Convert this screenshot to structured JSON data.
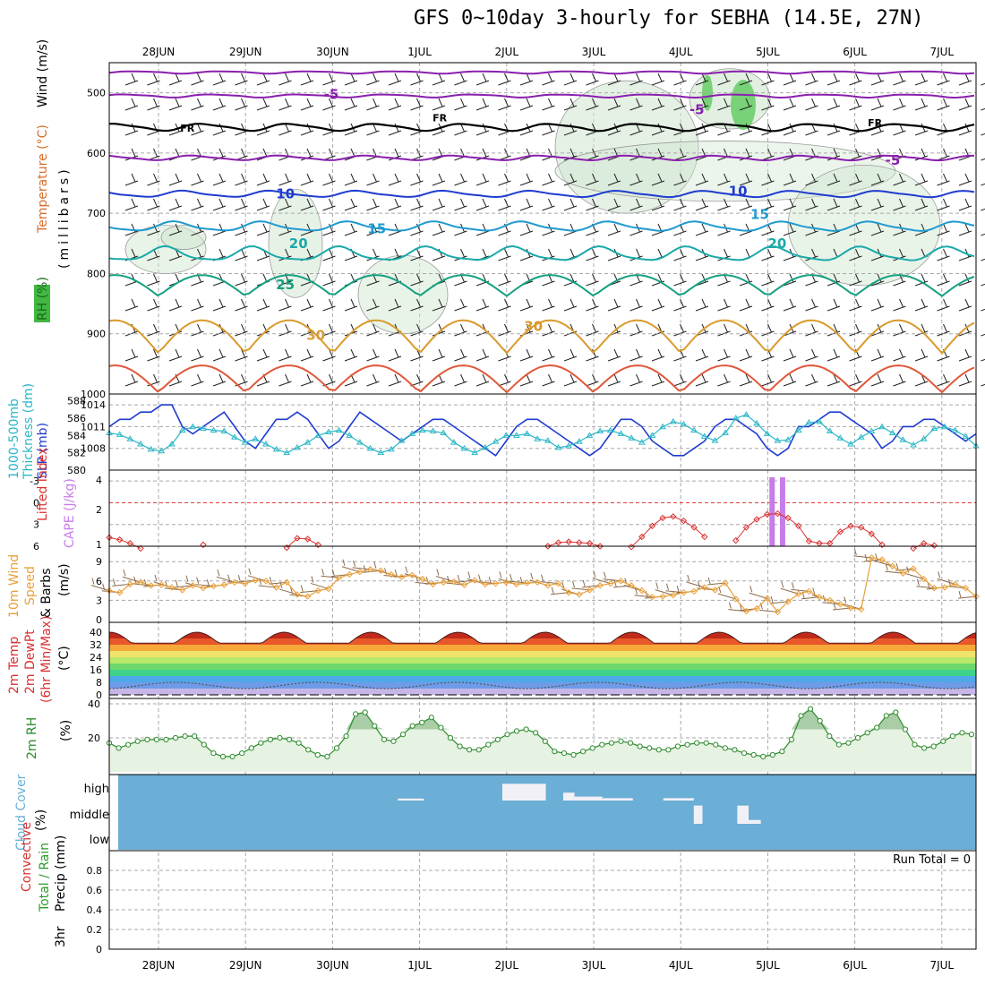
{
  "title": "GFS 0~10day 3-hourly for SEBHA (14.5E, 27N)",
  "dates": [
    "28JUN",
    "29JUN",
    "30JUN",
    "1JUL",
    "2JUL",
    "3JUL",
    "4JUL",
    "5JUL",
    "6JUL",
    "7JUL"
  ],
  "run_total": "Run Total = 0",
  "colors": {
    "wind_label": "#000000",
    "temp_label": "#d86d2b",
    "rh_label": "#2e9c2e",
    "slp": "#1f3ccf",
    "thickness": "#2bb7c7",
    "lifted": "#d93030",
    "cape": "#c77ce8",
    "wind10": "#e8a03a",
    "barbs10": "#8a6a4a",
    "rh2m": "#2e8b2e",
    "cloud_bg": "#6baed6",
    "cloud_fg": "#f2f0f7",
    "precip_total": "#2e9c2e",
    "precip_conv": "#d93030"
  },
  "panels": {
    "upper": {
      "ylabels": [
        "Wind (m/s)",
        "Temperature (°C)",
        "RH (%)",
        "(millibars)"
      ],
      "yticks": [
        "500",
        "600",
        "700",
        "800",
        "900",
        "1000"
      ],
      "contour_labels": [
        {
          "text": "-5",
          "x": 1.9,
          "p": 503,
          "color": "#8a1fae"
        },
        {
          "text": "-5",
          "x": 6.1,
          "p": 528,
          "color": "#8a1fae"
        },
        {
          "text": "-5",
          "x": 8.35,
          "p": 612,
          "color": "#8a1fae"
        },
        {
          "text": "FR",
          "x": 0.25,
          "p": 557,
          "color": "#000000"
        },
        {
          "text": "FR",
          "x": 3.15,
          "p": 540,
          "color": "#000000"
        },
        {
          "text": "FR",
          "x": 8.15,
          "p": 548,
          "color": "#000000"
        },
        {
          "text": "10",
          "x": 1.35,
          "p": 668,
          "color": "#1f3ccf"
        },
        {
          "text": "10",
          "x": 6.55,
          "p": 663,
          "color": "#1f3ccf"
        },
        {
          "text": "15",
          "x": 2.4,
          "p": 726,
          "color": "#1f9ad0"
        },
        {
          "text": "15",
          "x": 6.8,
          "p": 702,
          "color": "#1f9ad0"
        },
        {
          "text": "20",
          "x": 1.5,
          "p": 750,
          "color": "#1aa9a9"
        },
        {
          "text": "20",
          "x": 7.0,
          "p": 750,
          "color": "#1aa9a9"
        },
        {
          "text": "25",
          "x": 1.35,
          "p": 819,
          "color": "#14a080"
        },
        {
          "text": "30",
          "x": 1.7,
          "p": 903,
          "color": "#d99a2b"
        },
        {
          "text": "30",
          "x": 4.2,
          "p": 888,
          "color": "#d99a2b"
        }
      ],
      "isotherms": [
        {
          "name": "-10",
          "color": "#8a1fae",
          "base": 466,
          "amp": 3
        },
        {
          "name": "-5 upper",
          "color": "#8a1fae",
          "base": 505,
          "amp": 4
        },
        {
          "name": "FR",
          "color": "#000000",
          "base": 557,
          "amp": 9
        },
        {
          "name": "-5",
          "color": "#8a1fae",
          "base": 608,
          "amp": 6
        },
        {
          "name": "10",
          "color": "#1f3ccf",
          "base": 668,
          "amp": 8
        },
        {
          "name": "15",
          "color": "#1f9ad0",
          "base": 722,
          "amp": 12
        },
        {
          "name": "20",
          "color": "#1aa9a9",
          "base": 768,
          "amp": 18
        },
        {
          "name": "25",
          "color": "#14a080",
          "base": 820,
          "amp": 35
        },
        {
          "name": "30",
          "color": "#d99a2b",
          "base": 905,
          "amp": 55
        },
        {
          "name": "35",
          "color": "#e0583a",
          "base": 975,
          "amp": 45
        }
      ]
    },
    "slp": {
      "ylabels": [
        "1000-500mb",
        "Thickness (dm)",
        "SLP (mb)"
      ],
      "left_ticks": [
        "588",
        "586",
        "584",
        "582",
        "580"
      ],
      "right_ticks": [
        "1014",
        "1011",
        "1008"
      ],
      "slp_values": [
        1011,
        1012,
        1012,
        1013,
        1013,
        1014,
        1014,
        1011,
        1010,
        1011,
        1012,
        1013,
        1011,
        1009,
        1008,
        1010,
        1012,
        1012,
        1013,
        1012,
        1010,
        1008,
        1009,
        1011,
        1013,
        1012,
        1011,
        1010,
        1009,
        1010,
        1011,
        1012,
        1012,
        1011,
        1010,
        1009,
        1008,
        1007,
        1009,
        1011,
        1012,
        1012,
        1011,
        1010,
        1009,
        1008,
        1007,
        1008,
        1010,
        1012,
        1012,
        1011,
        1009,
        1008,
        1007,
        1007,
        1008,
        1009,
        1011,
        1012,
        1012,
        1011,
        1010,
        1008,
        1007,
        1008,
        1011,
        1011,
        1012,
        1013,
        1013,
        1012,
        1011,
        1010,
        1008,
        1009,
        1011,
        1011,
        1012,
        1012,
        1011,
        1010,
        1009,
        1010
      ],
      "thick_values": [
        584.3,
        584.1,
        583.6,
        583,
        582.4,
        582.2,
        583,
        584.6,
        585,
        584.8,
        584.6,
        584.5,
        583.8,
        583.2,
        583.6,
        583,
        582.4,
        582,
        582.6,
        583.2,
        584,
        584.4,
        584.6,
        584,
        583.2,
        582.5,
        582,
        582.4,
        583.4,
        584.2,
        584.6,
        584.5,
        584.3,
        583.2,
        582.5,
        582,
        582.6,
        583.3,
        584,
        584,
        584.2,
        583.6,
        583.4,
        582.6,
        582.8,
        583.3,
        584,
        584.5,
        584.6,
        584.2,
        583.7,
        583.2,
        584,
        585,
        585.6,
        585.3,
        584.6,
        583.9,
        583.4,
        584.3,
        586,
        586.4,
        585.4,
        584.2,
        583.4,
        583.5,
        584.6,
        585.5,
        585.6,
        584.5,
        583.7,
        583,
        583.8,
        584.5,
        585,
        584.3,
        583.5,
        582.9,
        583.6,
        584.8,
        585,
        584.6,
        583.9,
        582.8
      ]
    },
    "cape": {
      "ylabels": [
        "Lifted Index",
        "CAPE (J/kg)"
      ],
      "left_ticks": [
        "-3",
        "0",
        "3",
        "6"
      ],
      "right_ticks": [
        "4",
        "2",
        "1"
      ],
      "li_values": [
        4.8,
        5.1,
        5.6,
        6.3,
        7,
        7,
        7,
        7,
        6.6,
        5.8,
        6.5,
        7,
        6.8,
        6.9,
        7,
        7,
        7,
        6.2,
        4.9,
        5,
        5.8,
        6.7,
        7,
        7,
        7,
        7,
        7,
        7,
        7,
        7,
        7,
        7,
        7,
        7,
        7,
        7,
        7,
        7,
        7,
        7,
        7,
        7,
        6,
        5.5,
        5.4,
        5.5,
        5.6,
        6,
        7,
        6.8,
        6.1,
        4.7,
        3.2,
        2.1,
        1.9,
        2.5,
        3.4,
        4.7,
        7,
        7,
        5.2,
        3.4,
        2.3,
        1.6,
        1.5,
        2.1,
        3.2,
        5.3,
        5.6,
        5.6,
        4,
        3.2,
        3.4,
        4.3,
        5.8,
        7,
        7,
        6.3,
        5.6,
        5.9,
        6.7,
        7,
        7,
        7
      ],
      "cape_bars": [
        {
          "x": 7.05,
          "value": 4.0
        },
        {
          "x": 7.17,
          "value": 4.0
        }
      ]
    },
    "wind10": {
      "ylabels": [
        "10m Wind",
        "Speed",
        "& Barbs",
        "(m/s)"
      ],
      "yticks": [
        "9",
        "6",
        "3",
        "0"
      ],
      "speed_values": [
        4.5,
        4.2,
        5.5,
        5.8,
        5.3,
        5.4,
        5,
        4.6,
        5.3,
        4.9,
        5.2,
        5.4,
        5.8,
        5.6,
        6.1,
        6,
        5,
        5.8,
        3.9,
        3.6,
        4.5,
        4.8,
        6.5,
        7,
        7.4,
        7.8,
        7.6,
        7,
        6.6,
        6.9,
        6.3,
        5.5,
        5.8,
        5.9,
        5.4,
        6.1,
        5.5,
        5.6,
        5.8,
        5.5,
        5.7,
        5.8,
        5.3,
        5.6,
        4.2,
        3.9,
        4.6,
        5.3,
        5.6,
        6,
        5.3,
        4.5,
        3.5,
        3.6,
        3.8,
        4.2,
        4.4,
        5,
        4.6,
        5.7,
        3.2,
        1.3,
        1.7,
        3.3,
        1.2,
        2.8,
        4,
        4.4,
        3.5,
        3,
        2.4,
        1.8,
        1.6,
        9.6,
        9.3,
        8.3,
        7.2,
        7.9,
        6.3,
        4.9,
        5,
        5.5,
        4.9,
        3.6
      ]
    },
    "temp2m": {
      "ylabels": [
        "2m Temp",
        "2m DewPt",
        "(6hr Min/Max)",
        "(°C)"
      ],
      "yticks": [
        "40",
        "32",
        "24",
        "16",
        "8",
        "0"
      ],
      "max_values": [
        38,
        40,
        40,
        41,
        40,
        41,
        39,
        40,
        39,
        41,
        40
      ],
      "min_values": [
        28,
        27,
        28,
        28,
        27,
        28,
        27,
        28,
        27,
        28,
        28
      ]
    },
    "rh2m": {
      "ylabels": [
        "2m RH",
        "(%)"
      ],
      "yticks": [
        "40",
        "20"
      ],
      "values": [
        17,
        14,
        16,
        18,
        19,
        19,
        19,
        20,
        21,
        21,
        16,
        11,
        9,
        9,
        11,
        14,
        17,
        19,
        20,
        19,
        17,
        13,
        10,
        9,
        14,
        21,
        34,
        35,
        27,
        19,
        18,
        22,
        27,
        29,
        32,
        26,
        20,
        15,
        13,
        13,
        16,
        19,
        22,
        24,
        25,
        23,
        18,
        12,
        11,
        10,
        12,
        14,
        16,
        17,
        18,
        17,
        15,
        14,
        13,
        13,
        15,
        16,
        17,
        17,
        16,
        14,
        13,
        11,
        10,
        9,
        10,
        12,
        19,
        33,
        37,
        30,
        21,
        16,
        17,
        20,
        23,
        26,
        33,
        35,
        25,
        16,
        14,
        15,
        18,
        21,
        23,
        22
      ]
    },
    "cloud": {
      "ylabels": [
        "Cloud Cover",
        "(%)"
      ],
      "levels": [
        "high",
        "middle",
        "low"
      ],
      "blocks": [
        {
          "x0": 2.75,
          "x1": 3.05,
          "level": "high",
          "frac": 0.1
        },
        {
          "x0": 3.95,
          "x1": 4.45,
          "level": "high",
          "frac": 0.85
        },
        {
          "x0": 4.65,
          "x1": 4.78,
          "level": "high",
          "frac": 0.4
        },
        {
          "x0": 4.78,
          "x1": 5.1,
          "level": "high",
          "frac": 0.2
        },
        {
          "x0": 5.1,
          "x1": 5.45,
          "level": "high",
          "frac": 0.12
        },
        {
          "x0": 5.8,
          "x1": 6.15,
          "level": "high",
          "frac": 0.12
        },
        {
          "x0": 6.15,
          "x1": 6.25,
          "level": "middle",
          "frac": 0.85
        },
        {
          "x0": 6.65,
          "x1": 6.78,
          "level": "middle",
          "frac": 0.85
        },
        {
          "x0": 6.78,
          "x1": 6.92,
          "level": "middle",
          "frac": 0.18
        }
      ]
    },
    "precip": {
      "ylabels": [
        "Precip (mm)",
        "3hr",
        "Total / Rain",
        "Convective"
      ],
      "yticks": [
        "0.8",
        "0.6",
        "0.4",
        "0.2",
        "0"
      ]
    }
  },
  "chart_data": {
    "type": "line",
    "title": "GFS 0~10day 3-hourly for SEBHA (14.5E, 27N)",
    "x_categories": [
      "28JUN",
      "29JUN",
      "30JUN",
      "1JUL",
      "2JUL",
      "3JUL",
      "4JUL",
      "5JUL",
      "6JUL",
      "7JUL"
    ],
    "series": [
      {
        "name": "SLP (mb)",
        "ylim": [
          1005,
          1015
        ]
      },
      {
        "name": "1000-500mb Thickness (dm)",
        "ylim": [
          580,
          588
        ]
      },
      {
        "name": "10m Wind Speed (m/s)",
        "ylim": [
          0,
          10
        ]
      },
      {
        "name": "2m RH (%)",
        "ylim": [
          0,
          40
        ]
      },
      {
        "name": "3hr Precip (mm)",
        "values": [
          0
        ],
        "ylim": [
          0,
          1
        ]
      }
    ]
  }
}
